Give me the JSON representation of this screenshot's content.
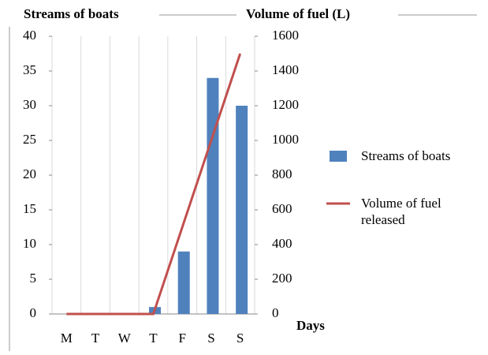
{
  "chart_data": {
    "type": "bar_line",
    "y_label": "Streams of boats",
    "y2_label": "Volume of fuel (L)",
    "x_label": "Days",
    "categories": [
      "M",
      "T",
      "W",
      "T",
      "F",
      "S",
      "S"
    ],
    "series": [
      {
        "name": "Streams of boats",
        "type": "bar",
        "color": "#4f81bd",
        "values": [
          0,
          0,
          0,
          1,
          9,
          34,
          30
        ]
      },
      {
        "name": "Volume of fuel released",
        "type": "line",
        "axis": "y2",
        "color": "#c0504d",
        "values": [
          0,
          0,
          0,
          0,
          500,
          1000,
          1500
        ]
      }
    ],
    "ylim": [
      0,
      40
    ],
    "yticks": [
      0,
      5,
      10,
      15,
      20,
      25,
      30,
      35,
      40
    ],
    "y2lim": [
      0,
      1600
    ],
    "y2ticks": [
      0,
      200,
      400,
      600,
      800,
      1000,
      1200,
      1400,
      1600
    ],
    "legend": "right"
  }
}
